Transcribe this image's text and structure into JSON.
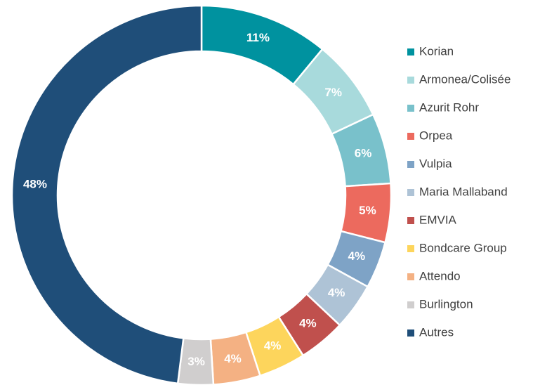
{
  "chart_data": {
    "type": "donut",
    "categories": [
      "Korian",
      "Armonea/Colisée",
      "Azurit Rohr",
      "Orpea",
      "Vulpia",
      "Maria Mallaband",
      "EMVIA",
      "Bondcare Group",
      "Attendo",
      "Burlington",
      "Autres"
    ],
    "values": [
      11,
      7,
      6,
      5,
      4,
      4,
      4,
      4,
      4,
      3,
      48
    ],
    "value_labels": [
      "11%",
      "7%",
      "6%",
      "5%",
      "4%",
      "4%",
      "4%",
      "4%",
      "4%",
      "3%",
      "48%"
    ],
    "colors": [
      "#00929f",
      "#a8dadc",
      "#79c1cb",
      "#ec6a5e",
      "#7ea3c6",
      "#aec3d6",
      "#c0504d",
      "#fdd55c",
      "#f4b183",
      "#d0cece",
      "#1f4e79"
    ],
    "legend": "right"
  }
}
